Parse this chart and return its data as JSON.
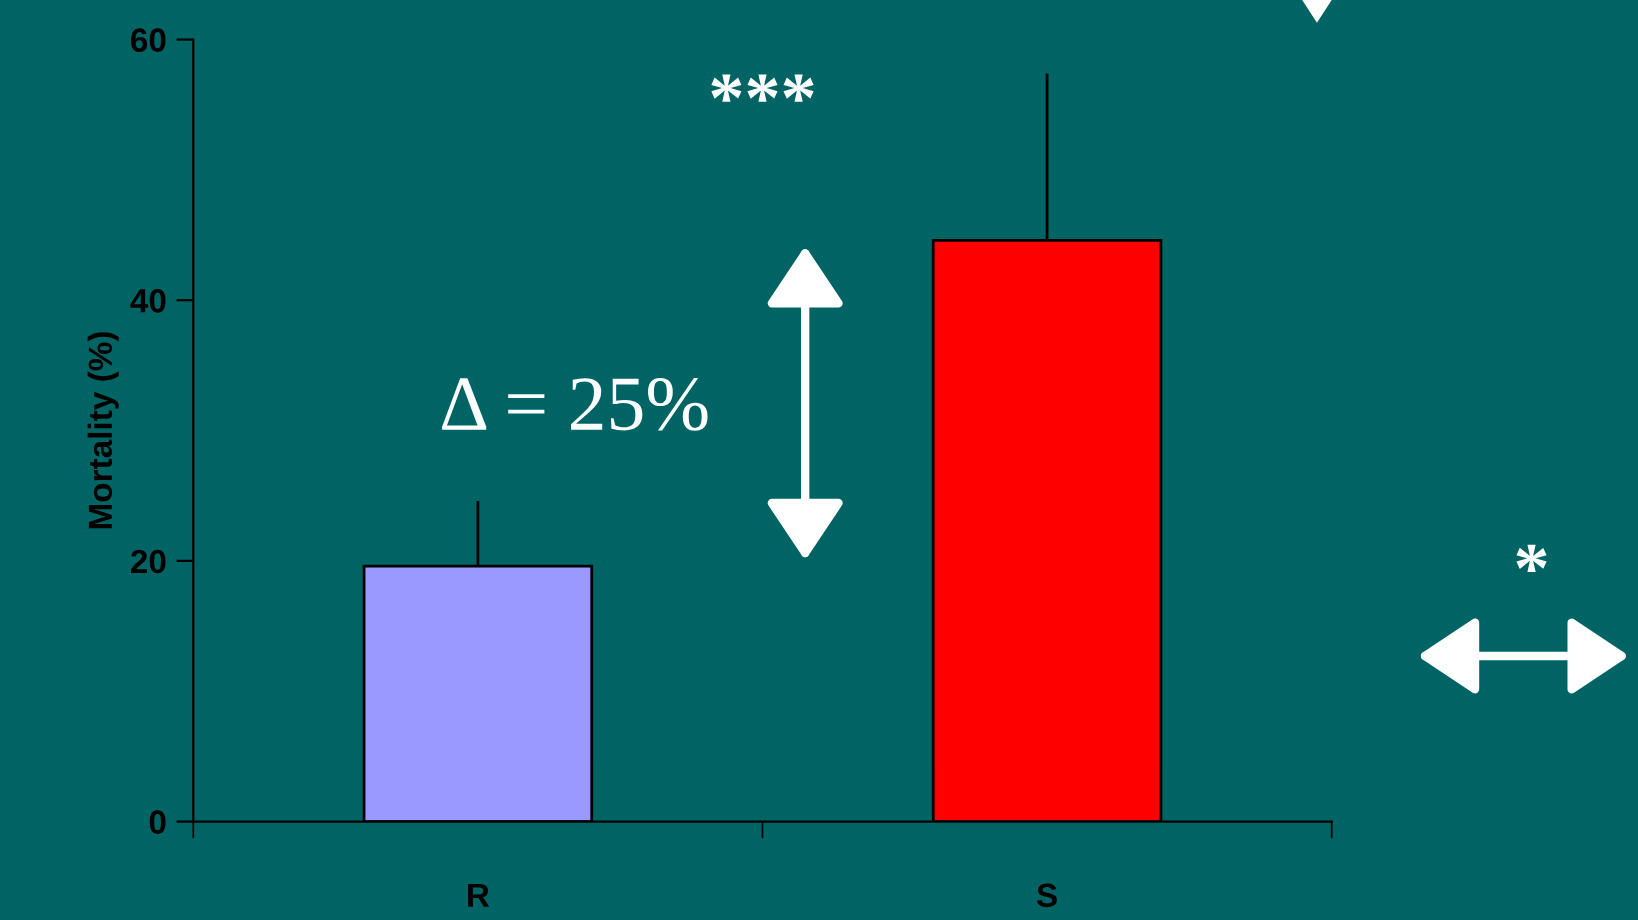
{
  "chart_data": {
    "type": "bar",
    "ylabel": "Mortality (%)",
    "categories": [
      "R",
      "S"
    ],
    "values": [
      19.6,
      44.6
    ],
    "colors": [
      "#9999ff",
      "#ff0000"
    ],
    "errors": [
      [
        19.6,
        24.6
      ],
      [
        44.6,
        57.4
      ]
    ],
    "ylim": [
      0,
      60
    ],
    "yticks": [
      0,
      20,
      40,
      60
    ],
    "grid": false,
    "annotations": [
      "***",
      "Δ = 25%",
      "*"
    ]
  }
}
